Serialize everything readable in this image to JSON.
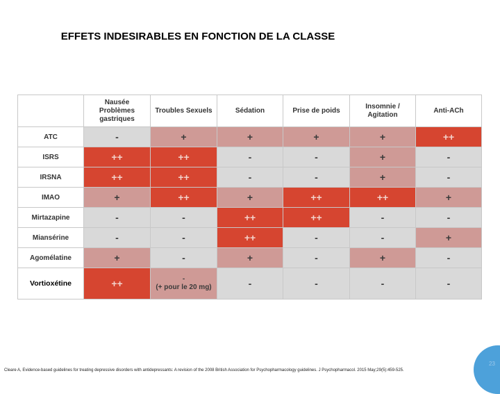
{
  "title": "EFFETS INDESIRABLES EN FONCTION DE LA CLASSE",
  "colors": {
    "none": "#d9d9d9",
    "low": "#cf9a96",
    "high": "#d64530",
    "accent_circle": "#4da1da"
  },
  "table": {
    "columns": [
      "Nausée\nProblèmes\ngastriques",
      "Troubles Sexuels",
      "Sédation",
      "Prise de poids",
      "Insomnie /\nAgitation",
      "Anti-ACh"
    ],
    "rows": [
      {
        "label": "ATC",
        "cells": [
          {
            "text": "-",
            "level": "none"
          },
          {
            "text": "+",
            "level": "low"
          },
          {
            "text": "+",
            "level": "low"
          },
          {
            "text": "+",
            "level": "low"
          },
          {
            "text": "+",
            "level": "low"
          },
          {
            "text": "++",
            "level": "high"
          }
        ]
      },
      {
        "label": "ISRS",
        "cells": [
          {
            "text": "++",
            "level": "high"
          },
          {
            "text": "++",
            "level": "high"
          },
          {
            "text": "-",
            "level": "none"
          },
          {
            "text": "-",
            "level": "none"
          },
          {
            "text": "+",
            "level": "low"
          },
          {
            "text": "-",
            "level": "none"
          }
        ]
      },
      {
        "label": "IRSNA",
        "cells": [
          {
            "text": "++",
            "level": "high"
          },
          {
            "text": "++",
            "level": "high"
          },
          {
            "text": "-",
            "level": "none"
          },
          {
            "text": "-",
            "level": "none"
          },
          {
            "text": "+",
            "level": "low"
          },
          {
            "text": "-",
            "level": "none"
          }
        ]
      },
      {
        "label": "IMAO",
        "cells": [
          {
            "text": "+",
            "level": "low"
          },
          {
            "text": "++",
            "level": "high"
          },
          {
            "text": "+",
            "level": "low"
          },
          {
            "text": "++",
            "level": "high"
          },
          {
            "text": "++",
            "level": "high"
          },
          {
            "text": "+",
            "level": "low"
          }
        ]
      },
      {
        "label": "Mirtazapine",
        "cells": [
          {
            "text": "-",
            "level": "none"
          },
          {
            "text": "-",
            "level": "none"
          },
          {
            "text": "++",
            "level": "high"
          },
          {
            "text": "++",
            "level": "high"
          },
          {
            "text": "-",
            "level": "none"
          },
          {
            "text": "-",
            "level": "none"
          }
        ]
      },
      {
        "label": "Miansérine",
        "cells": [
          {
            "text": "-",
            "level": "none"
          },
          {
            "text": "-",
            "level": "none"
          },
          {
            "text": "++",
            "level": "high"
          },
          {
            "text": "-",
            "level": "none"
          },
          {
            "text": "-",
            "level": "none"
          },
          {
            "text": "+",
            "level": "low"
          }
        ]
      },
      {
        "label": "Agomélatine",
        "cells": [
          {
            "text": "+",
            "level": "low"
          },
          {
            "text": "-",
            "level": "none"
          },
          {
            "text": "+",
            "level": "low"
          },
          {
            "text": "-",
            "level": "none"
          },
          {
            "text": "+",
            "level": "low"
          },
          {
            "text": "-",
            "level": "none"
          }
        ]
      },
      {
        "label": "Vortioxétine",
        "emphasis": true,
        "cells": [
          {
            "text": "++",
            "level": "high"
          },
          {
            "text": "-\n(+ pour le 20 mg)",
            "level": "low",
            "small": true
          },
          {
            "text": "-",
            "level": "none"
          },
          {
            "text": "-",
            "level": "none"
          },
          {
            "text": "-",
            "level": "none"
          },
          {
            "text": "-",
            "level": "none"
          }
        ]
      }
    ]
  },
  "citation": "Cleare  A, Evidence-based guidelines for treating depressive disorders with antidepressants: A revision of the 2008 British Association for Psychopharmacology guidelines. J Psychopharmacol. 2015 May;29(5):459-525.",
  "page_number": "23"
}
